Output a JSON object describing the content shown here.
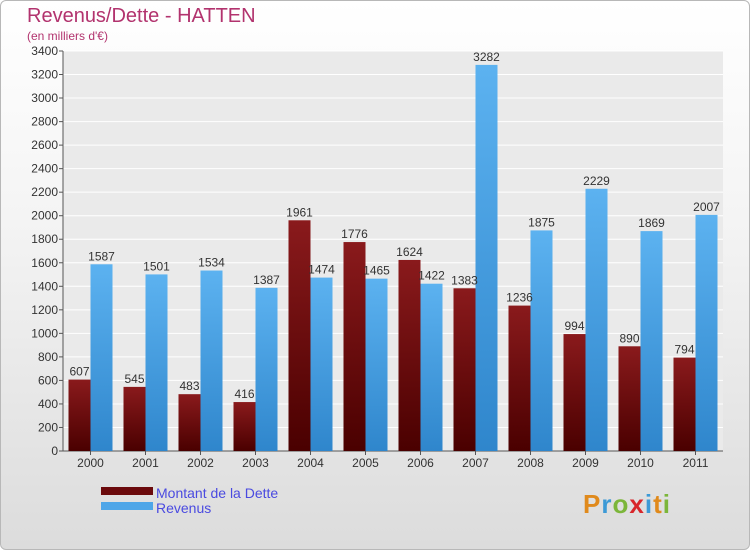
{
  "header": {
    "title": "Revenus/Dette - HATTEN",
    "subtitle": "(en milliers d'€)"
  },
  "legend": {
    "items": [
      {
        "label": "Montant de la Dette",
        "color": "#6b0a0c"
      },
      {
        "label": "Revenus",
        "color": "#4ea6e8"
      }
    ]
  },
  "logo": {
    "text": "Proxiti",
    "letters": [
      "P",
      "r",
      "o",
      "x",
      "i",
      "t",
      "i"
    ],
    "colors": [
      "#e08a1c",
      "#3d9ad6",
      "#7cb63a",
      "#d8262a",
      "#3d9ad6",
      "#e08a1c",
      "#7cb63a"
    ]
  },
  "chart_data": {
    "type": "bar",
    "title": "Revenus/Dette - HATTEN",
    "subtitle": "(en milliers d'€)",
    "xlabel": "",
    "ylabel": "",
    "ylim": [
      0,
      3400
    ],
    "yticks": [
      0,
      200,
      400,
      600,
      800,
      1000,
      1200,
      1400,
      1600,
      1800,
      2000,
      2200,
      2400,
      2600,
      2800,
      3000,
      3200,
      3400
    ],
    "grid": true,
    "legend_position": "bottom-left",
    "categories": [
      "2000",
      "2001",
      "2002",
      "2003",
      "2004",
      "2005",
      "2006",
      "2007",
      "2008",
      "2009",
      "2010",
      "2011"
    ],
    "series": [
      {
        "name": "Montant de la Dette",
        "color": "#6b0a0c",
        "values": [
          607,
          545,
          483,
          416,
          1961,
          1776,
          1624,
          1383,
          1236,
          994,
          890,
          794
        ]
      },
      {
        "name": "Revenus",
        "color": "#4ea6e8",
        "values": [
          1587,
          1501,
          1534,
          1387,
          1474,
          1465,
          1422,
          3282,
          1875,
          2229,
          1869,
          2007
        ]
      }
    ]
  }
}
